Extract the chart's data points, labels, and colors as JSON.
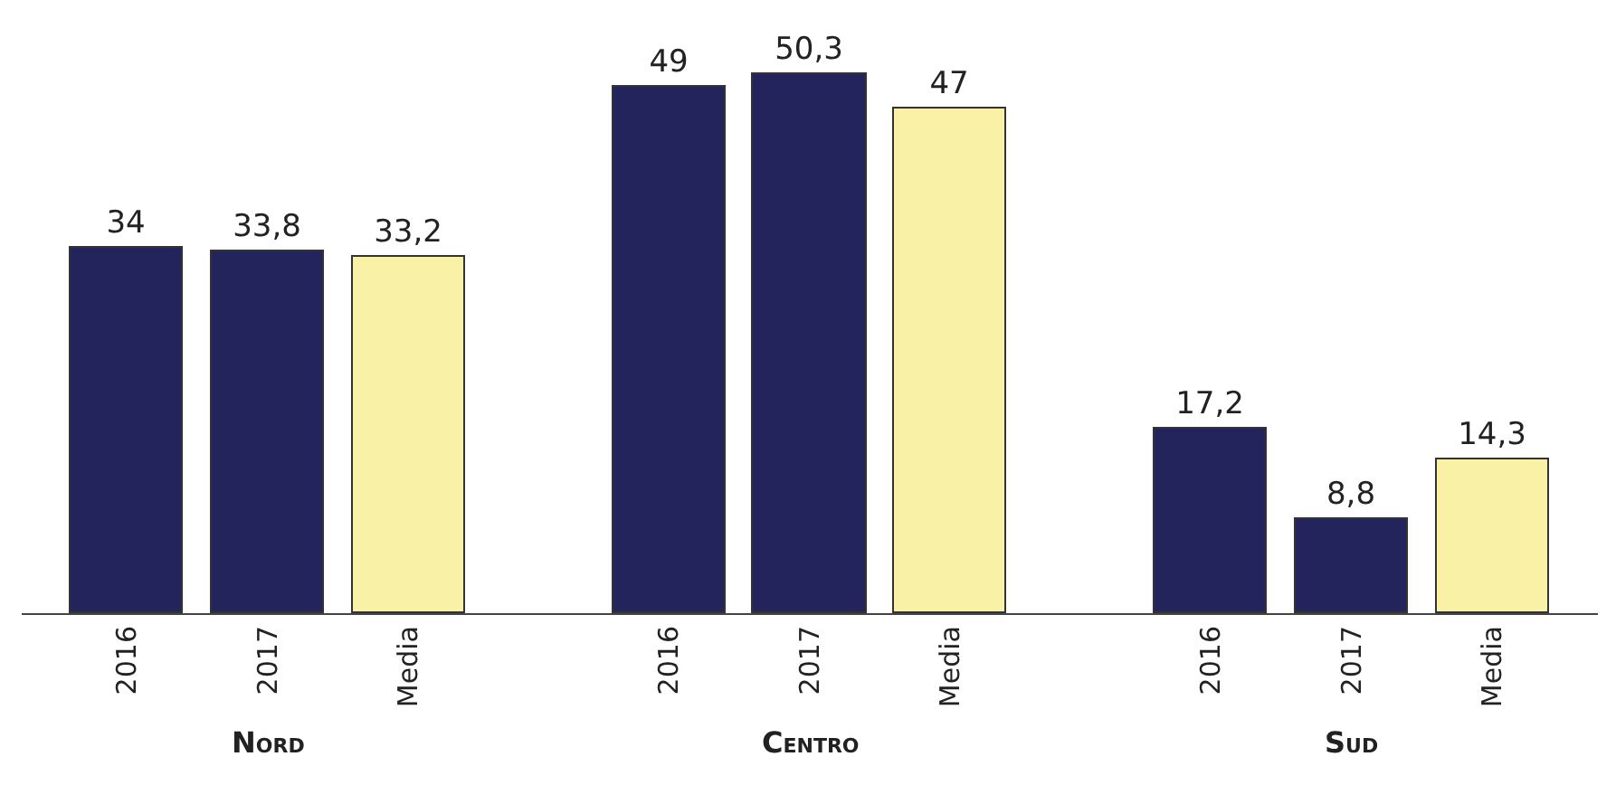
{
  "chart_data": {
    "type": "bar",
    "categories": [
      "2016",
      "2017",
      "Media",
      "2016",
      "2017",
      "Media",
      "2016",
      "2017",
      "Media"
    ],
    "values": [
      34,
      33.8,
      33.2,
      49,
      50.3,
      47,
      17.2,
      8.8,
      14.3
    ],
    "value_labels": [
      "34",
      "33,8",
      "33,2",
      "49",
      "50,3",
      "47",
      "17,2",
      "8,8",
      "14,3"
    ],
    "colors": [
      "#23245c",
      "#23245c",
      "#f9f1a6",
      "#23245c",
      "#23245c",
      "#f9f1a6",
      "#23245c",
      "#23245c",
      "#f9f1a6"
    ],
    "annotations": [
      "Nord",
      "Centro",
      "Sud"
    ],
    "tick_labels": "x"
  }
}
